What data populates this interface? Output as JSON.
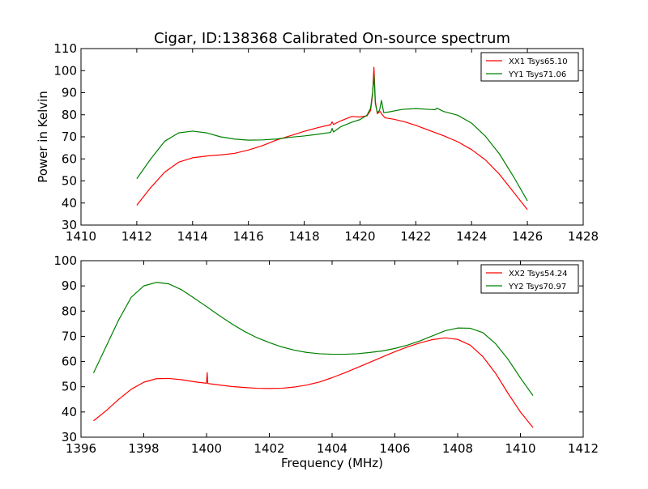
{
  "title": "Cigar, ID:138368 Calibrated On-source spectrum",
  "chart_data": [
    {
      "type": "line",
      "xlabel": "",
      "ylabel": "Power in Kelvin",
      "xlim": [
        1410,
        1428
      ],
      "ylim": [
        30,
        110
      ],
      "xticks": [
        1410,
        1412,
        1414,
        1416,
        1418,
        1420,
        1422,
        1424,
        1426,
        1428
      ],
      "yticks": [
        30,
        40,
        50,
        60,
        70,
        80,
        90,
        100,
        110
      ],
      "legend_position": "top-right",
      "series": [
        {
          "name": "XX1 Tsys65.10",
          "color": "#ff0000",
          "x": [
            1412,
            1412.5,
            1413,
            1413.5,
            1414,
            1414.5,
            1415,
            1415.5,
            1416,
            1416.5,
            1417,
            1417.5,
            1418,
            1418.5,
            1418.95,
            1419.0,
            1419.05,
            1419.3,
            1419.7,
            1420.0,
            1420.25,
            1420.38,
            1420.45,
            1420.5,
            1420.55,
            1420.62,
            1420.72,
            1420.8,
            1420.9,
            1421.2,
            1421.6,
            1422,
            1422.5,
            1423,
            1423.5,
            1424,
            1424.5,
            1425,
            1425.5,
            1426
          ],
          "y": [
            39,
            47,
            54,
            58.5,
            60.5,
            61.3,
            61.8,
            62.5,
            64,
            66,
            68.5,
            70.5,
            72.5,
            74.2,
            75.5,
            76.8,
            75.6,
            77.2,
            79.2,
            79.0,
            79.5,
            82,
            89,
            101.5,
            86,
            80.5,
            81.5,
            80,
            78.6,
            78,
            76.8,
            75.2,
            72.8,
            70.5,
            67.8,
            64.2,
            59.5,
            53,
            45,
            37
          ]
        },
        {
          "name": "YY1 Tsys71.06",
          "color": "#008000",
          "x": [
            1412,
            1412.5,
            1413,
            1413.5,
            1414,
            1414.5,
            1415,
            1415.5,
            1416,
            1416.5,
            1417,
            1417.5,
            1418,
            1418.5,
            1418.95,
            1419.0,
            1419.05,
            1419.3,
            1419.7,
            1420.0,
            1420.25,
            1420.38,
            1420.45,
            1420.5,
            1420.55,
            1420.62,
            1420.7,
            1420.77,
            1420.85,
            1421.0,
            1421.5,
            1422,
            1422.5,
            1422.7,
            1422.75,
            1423,
            1423.5,
            1424,
            1424.5,
            1425,
            1425.5,
            1426
          ],
          "y": [
            51,
            60,
            68,
            71.8,
            72.6,
            71.8,
            70,
            69,
            68.5,
            68.6,
            69,
            69.8,
            70.4,
            71.2,
            72,
            73.8,
            72.2,
            74.5,
            76.6,
            77.8,
            79.8,
            83,
            90,
            98,
            85,
            81,
            82,
            86.5,
            81,
            81.2,
            82.4,
            82.8,
            82.4,
            82.3,
            83,
            81.5,
            79.8,
            76.2,
            70.2,
            62.2,
            52,
            41
          ]
        }
      ]
    },
    {
      "type": "line",
      "xlabel": "Frequency (MHz)",
      "ylabel": "",
      "xlim": [
        1396,
        1412
      ],
      "ylim": [
        30,
        100
      ],
      "xticks": [
        1396,
        1398,
        1400,
        1402,
        1404,
        1406,
        1408,
        1410,
        1412
      ],
      "yticks": [
        30,
        40,
        50,
        60,
        70,
        80,
        90,
        100
      ],
      "legend_position": "top-right",
      "series": [
        {
          "name": "XX2 Tsys54.24",
          "color": "#ff0000",
          "x": [
            1396.4,
            1396.8,
            1397.2,
            1397.6,
            1398.0,
            1398.4,
            1398.8,
            1399.2,
            1399.6,
            1400.0,
            1400.02,
            1400.04,
            1400.4,
            1400.8,
            1401.2,
            1401.6,
            1402.0,
            1402.4,
            1402.8,
            1403.2,
            1403.6,
            1404.0,
            1404.4,
            1404.8,
            1405.2,
            1405.6,
            1406.0,
            1406.4,
            1406.8,
            1407.2,
            1407.6,
            1408.0,
            1408.4,
            1408.8,
            1409.2,
            1409.6,
            1410.0,
            1410.4
          ],
          "y": [
            36.5,
            40.5,
            45,
            49,
            51.8,
            53.2,
            53.3,
            52.8,
            52,
            51.4,
            55.6,
            51.3,
            50.7,
            50.1,
            49.7,
            49.4,
            49.3,
            49.4,
            49.9,
            50.7,
            51.9,
            53.6,
            55.5,
            57.6,
            59.7,
            61.8,
            63.9,
            65.8,
            67.4,
            68.7,
            69.4,
            68.8,
            66.5,
            62,
            55.5,
            47.5,
            40,
            33.8
          ]
        },
        {
          "name": "YY2 Tsys70.97",
          "color": "#008000",
          "x": [
            1396.4,
            1396.8,
            1397.2,
            1397.6,
            1398.0,
            1398.4,
            1398.8,
            1399.2,
            1399.6,
            1400.0,
            1400.4,
            1400.8,
            1401.2,
            1401.6,
            1402.0,
            1402.4,
            1402.8,
            1403.2,
            1403.6,
            1404.0,
            1404.4,
            1404.8,
            1405.2,
            1405.6,
            1406.0,
            1406.4,
            1406.8,
            1407.2,
            1407.6,
            1408.0,
            1408.4,
            1408.8,
            1409.2,
            1409.6,
            1410.0,
            1410.4
          ],
          "y": [
            55.5,
            66,
            76.5,
            85.5,
            90,
            91.4,
            90.8,
            88.5,
            85.2,
            81.8,
            78.3,
            75,
            72,
            69.5,
            67.5,
            65.8,
            64.5,
            63.6,
            63.1,
            62.9,
            62.9,
            63.1,
            63.6,
            64.2,
            65.2,
            66.5,
            68.2,
            70.2,
            72.2,
            73.3,
            73.2,
            71.5,
            67.2,
            61,
            53.5,
            46.5
          ]
        }
      ]
    }
  ]
}
